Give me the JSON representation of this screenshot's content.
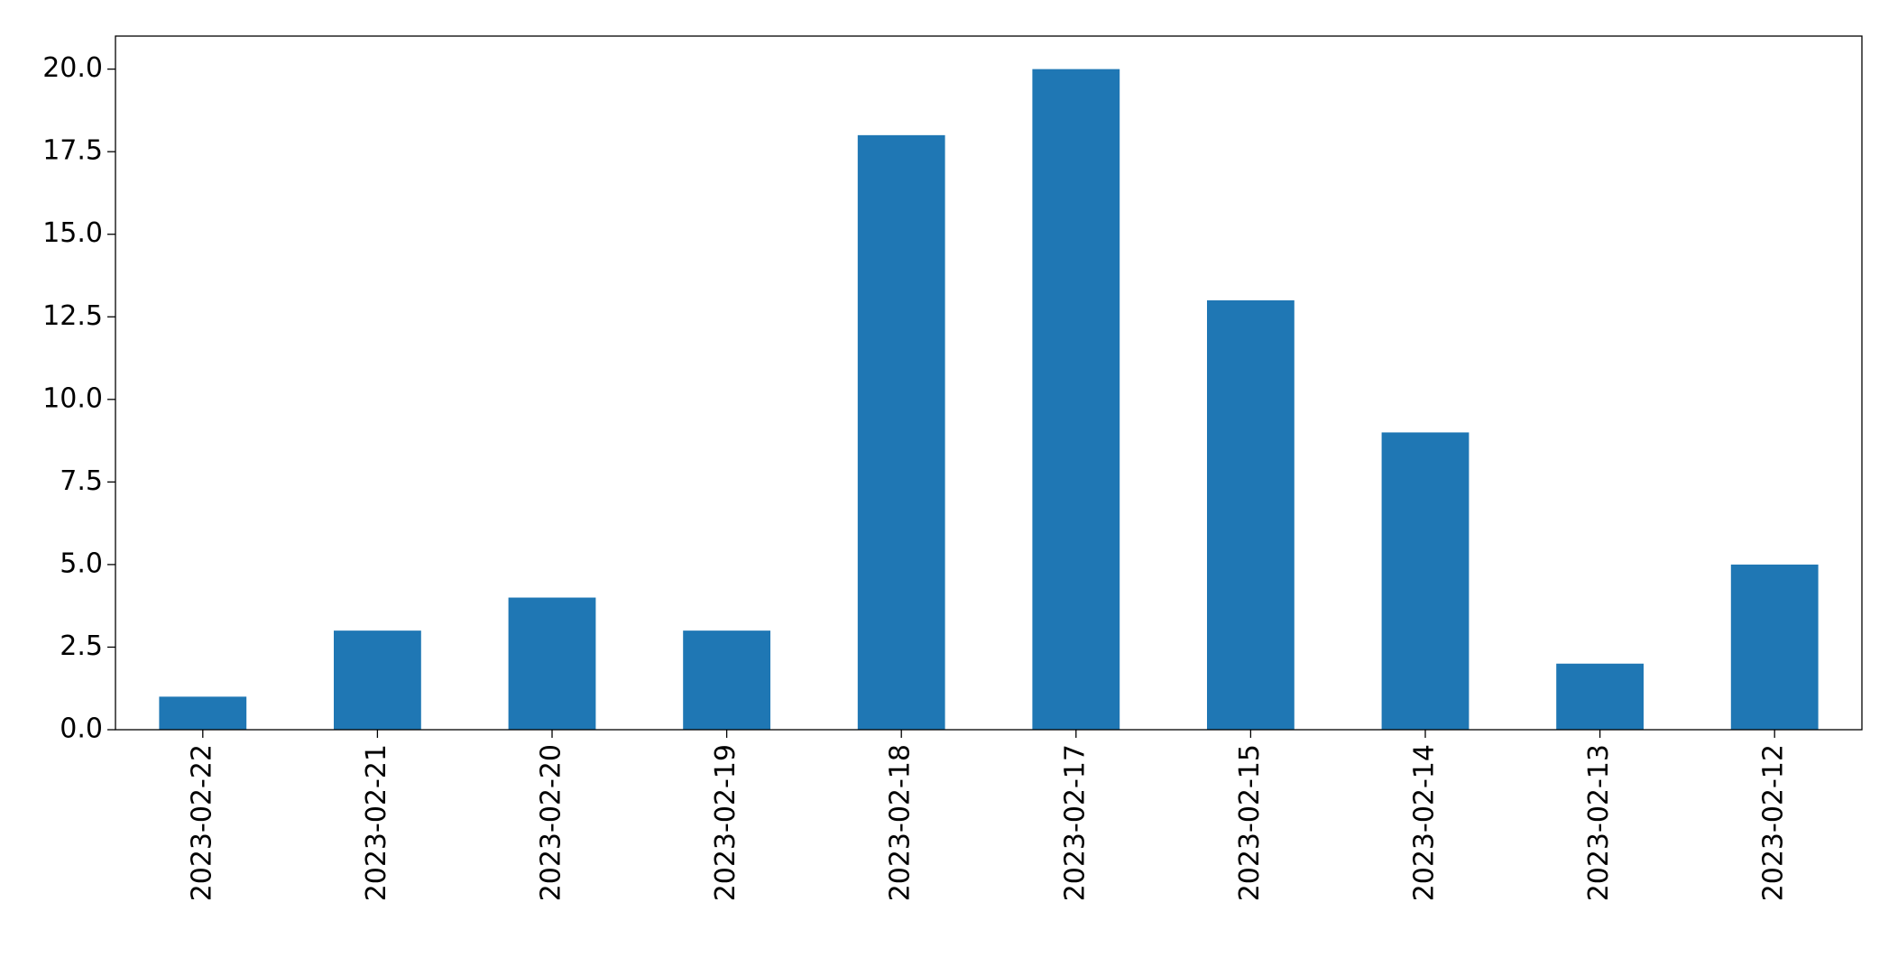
{
  "chart_data": {
    "type": "bar",
    "categories": [
      "2023-02-22",
      "2023-02-21",
      "2023-02-20",
      "2023-02-19",
      "2023-02-18",
      "2023-02-17",
      "2023-02-15",
      "2023-02-14",
      "2023-02-13",
      "2023-02-12"
    ],
    "values": [
      1,
      3,
      4,
      3,
      18,
      20,
      13,
      9,
      2,
      5
    ],
    "color": "#1f77b4",
    "ylim": [
      0,
      21
    ],
    "yticks": [
      {
        "value": 0,
        "label": "0.0"
      },
      2.5,
      {
        "value": 5,
        "label": "5.0"
      },
      7.5,
      {
        "value": 10,
        "label": "10.0"
      },
      12.5,
      {
        "value": 15,
        "label": "15.0"
      },
      17.5,
      {
        "value": 20,
        "label": "20.0"
      }
    ],
    "grid": false
  }
}
